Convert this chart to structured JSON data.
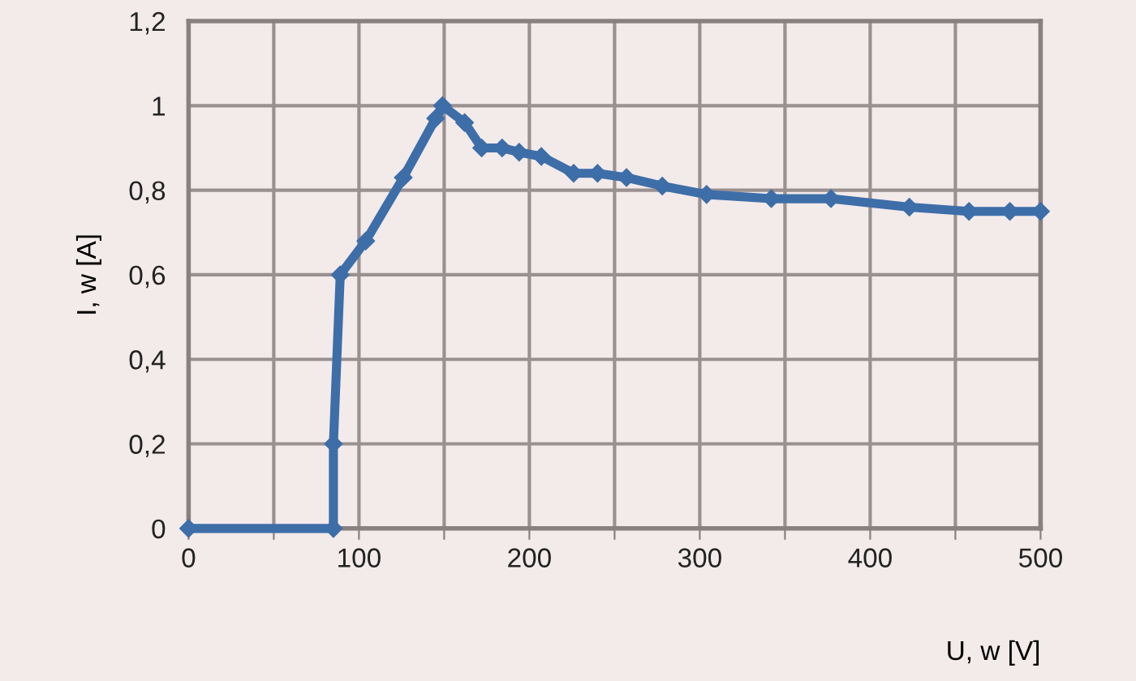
{
  "chart_data": {
    "type": "line",
    "xlabel": "U, w [V]",
    "ylabel": "I, w [A]",
    "x": [
      0,
      85,
      85,
      89,
      104,
      126,
      145,
      149,
      162,
      172,
      184,
      194,
      207,
      226,
      240,
      257,
      278,
      304,
      342,
      377,
      423,
      458,
      482,
      500
    ],
    "series": [
      {
        "color": "#3d6ea8",
        "values": [
          0,
          0,
          0.2,
          0.6,
          0.68,
          0.83,
          0.97,
          1.0,
          0.96,
          0.9,
          0.9,
          0.89,
          0.88,
          0.84,
          0.84,
          0.83,
          0.81,
          0.79,
          0.78,
          0.78,
          0.76,
          0.75,
          0.75,
          0.75
        ]
      }
    ],
    "xlim": [
      0,
      500
    ],
    "ylim": [
      0,
      1.2
    ],
    "xticks": [
      0,
      {
        "value": 50,
        "label": null
      },
      100,
      {
        "value": 150,
        "label": null
      },
      200,
      {
        "value": 250,
        "label": null
      },
      300,
      {
        "value": 350,
        "label": null
      },
      400,
      {
        "value": 450,
        "label": null
      },
      500
    ],
    "yticks": [
      {
        "value": 0,
        "label": "0"
      },
      {
        "value": 0.2,
        "label": "0,2"
      },
      {
        "value": 0.4,
        "label": "0,4"
      },
      {
        "value": 0.6,
        "label": "0,6"
      },
      {
        "value": 0.8,
        "label": "0,8"
      },
      {
        "value": 1,
        "label": "1"
      },
      {
        "value": 1.2,
        "label": "1,2"
      }
    ],
    "grid": true,
    "marker": "diamond",
    "line_style": "solid",
    "legend": false
  }
}
